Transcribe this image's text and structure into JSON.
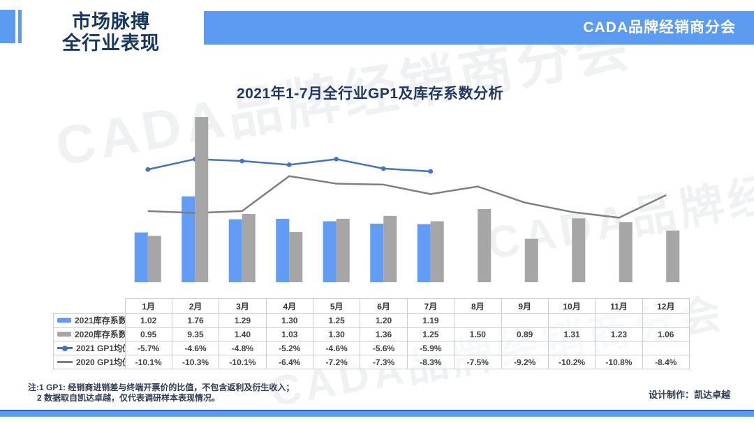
{
  "header": {
    "title_line1": "市场脉搏",
    "title_line2": "全行业表现",
    "banner_label": "CADA品牌经销商分会"
  },
  "watermark": {
    "text": "CADA品牌经销商分会"
  },
  "chart_data": {
    "type": "combo",
    "title": "2021年1-7月全行业GP1及库存系数分析",
    "categories": [
      "1月",
      "2月",
      "3月",
      "4月",
      "5月",
      "6月",
      "7月",
      "8月",
      "9月",
      "10月",
      "11月",
      "12月"
    ],
    "series": [
      {
        "name": "2021库存系数",
        "type": "bar",
        "color": "#619CF6",
        "values": [
          1.02,
          1.76,
          1.29,
          1.3,
          1.25,
          1.2,
          1.19,
          null,
          null,
          null,
          null,
          null
        ]
      },
      {
        "name": "2020库存系数",
        "type": "bar",
        "color": "#A6A6A6",
        "values": [
          0.95,
          9.35,
          1.4,
          1.03,
          1.3,
          1.36,
          1.25,
          1.5,
          0.89,
          1.31,
          1.23,
          1.06
        ]
      },
      {
        "name": "2021 GP1均值",
        "type": "line",
        "color": "#4472C4",
        "unit": "%",
        "values": [
          -5.7,
          -4.6,
          -4.8,
          -5.2,
          -4.6,
          -5.6,
          -5.9,
          null,
          null,
          null,
          null,
          null
        ]
      },
      {
        "name": "2020 GP1均值",
        "type": "line",
        "color": "#7F7F7F",
        "unit": "%",
        "values": [
          -10.1,
          -10.3,
          -10.1,
          -6.4,
          -7.2,
          -7.3,
          -8.3,
          -7.5,
          -9.2,
          -10.2,
          -10.8,
          -8.4
        ]
      }
    ],
    "legend_position": "table-below",
    "grid": false,
    "axes_visible": false,
    "note": "2月2020库存系数柱形在绘图区顶部被截断"
  },
  "footer": {
    "note_line1": "注:1 GP1: 经销商进销差与终端开票价的比值，不包含返利及衍生收入；",
    "note_line2": "2 数据取自凯达卓越，仅代表调研样本表现情况。",
    "credit": "设计制作：凯达卓越"
  },
  "colors": {
    "accent_blue": "#5B9BF2",
    "bar_blue": "#619CF6",
    "bar_gray": "#A6A6A6",
    "line_blue": "#4472C4",
    "line_gray": "#7F7F7F",
    "title_navy": "#17375E"
  }
}
